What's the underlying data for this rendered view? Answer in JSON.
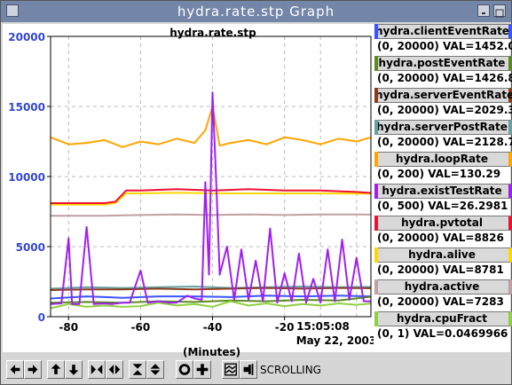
{
  "window": {
    "title": "hydra.rate.stp Graph"
  },
  "legend": [
    {
      "name": "hydra.clientEventRate",
      "range": "(0, 20000) VAL=1452.09",
      "color": "#3a54ff"
    },
    {
      "name": "hydra.postEventRate",
      "range": "(0, 20000) VAL=1426.8",
      "color": "#5b8a1e"
    },
    {
      "name": "hydra.serverEventRate",
      "range": "(0, 20000) VAL=2029.35",
      "color": "#8a3d1e"
    },
    {
      "name": "hydra.serverPostRate",
      "range": "(0, 20000) VAL=2128.74",
      "color": "#6aa0a0"
    },
    {
      "name": "hydra.loopRate",
      "range": "(0, 200) VAL=130.29",
      "color": "#ffa500"
    },
    {
      "name": "hydra.existTestRate",
      "range": "(0, 500) VAL=26.2981",
      "color": "#a020f0"
    },
    {
      "name": "hydra.pvtotal",
      "range": "(0, 20000) VAL=8826",
      "color": "#ee1030"
    },
    {
      "name": "hydra.alive",
      "range": "(0, 20000) VAL=8781",
      "color": "#ffd700"
    },
    {
      "name": "hydra.active",
      "range": "(0, 20000) VAL=7283",
      "color": "#c0a0a0"
    },
    {
      "name": "hydra.cpuFract",
      "range": "(0, 1) VAL=0.0469966",
      "color": "#90d040"
    }
  ],
  "toolbar": {
    "buttons": [
      "left-arrow",
      "right-arrow",
      "up-arrow",
      "down-arrow",
      "zoom-in-horizontal",
      "zoom-out-horizontal",
      "zoom-in-vertical",
      "zoom-out-vertical",
      "circle",
      "plus",
      "graph-style",
      "pin"
    ],
    "scrolling_label": "SCROLLING"
  },
  "chart_data": {
    "type": "line",
    "title": "hydra.rate.stp",
    "xlabel": "(Minutes)",
    "ylabel": "",
    "xlim": [
      -85,
      4
    ],
    "ylim": [
      0,
      20000
    ],
    "y_ticks": [
      "0",
      "5000",
      "10000",
      "15000",
      "20000"
    ],
    "x_ticks": [
      "-80",
      "-60",
      "-40",
      "-20"
    ],
    "time_label": "15:05:08",
    "date_label": "May 22, 2003",
    "grid": true,
    "series": [
      {
        "name": "hydra.clientEventRate",
        "x": [
          -85,
          -75,
          -65,
          -55,
          -45,
          -35,
          -25,
          -15,
          -5,
          4
        ],
        "values": [
          1300,
          1450,
          1350,
          1450,
          1450,
          1400,
          1500,
          1450,
          1500,
          1452
        ]
      },
      {
        "name": "hydra.postEventRate",
        "x": [
          -85,
          -75,
          -65,
          -55,
          -45,
          -35,
          -25,
          -15,
          -5,
          4
        ],
        "values": [
          1000,
          1050,
          1000,
          1100,
          1050,
          1150,
          1100,
          1200,
          1150,
          1427
        ]
      },
      {
        "name": "hydra.serverEventRate",
        "x": [
          -85,
          -75,
          -65,
          -55,
          -45,
          -35,
          -25,
          -15,
          -5,
          4
        ],
        "values": [
          1900,
          1950,
          1950,
          2000,
          1950,
          2000,
          2050,
          2000,
          2050,
          2029
        ]
      },
      {
        "name": "hydra.serverPostRate",
        "x": [
          -85,
          -75,
          -65,
          -55,
          -45,
          -35,
          -25,
          -15,
          -5,
          4
        ],
        "values": [
          2000,
          2100,
          2050,
          2100,
          2150,
          2050,
          2100,
          2150,
          2100,
          2129
        ]
      },
      {
        "name": "hydra.loopRate",
        "x": [
          -85,
          -80,
          -75,
          -70,
          -65,
          -60,
          -55,
          -50,
          -45,
          -42,
          -40,
          -38,
          -35,
          -30,
          -25,
          -20,
          -15,
          -10,
          -5,
          0,
          4
        ],
        "values": [
          12800,
          12300,
          12400,
          12600,
          12100,
          12500,
          12300,
          12700,
          12400,
          13300,
          15000,
          12200,
          12400,
          12600,
          12300,
          12800,
          12600,
          12300,
          12700,
          12500,
          12800
        ]
      },
      {
        "name": "hydra.existTestRate",
        "x": [
          -85,
          -82,
          -80,
          -79,
          -77,
          -75,
          -73,
          -70,
          -68,
          -65,
          -63,
          -60,
          -58,
          -55,
          -52,
          -50,
          -47,
          -45,
          -43,
          -42,
          -41,
          -40,
          -39,
          -38,
          -36,
          -34,
          -32,
          -30,
          -28,
          -26,
          -24,
          -22,
          -20,
          -18,
          -16,
          -14,
          -12,
          -10,
          -8,
          -6,
          -4,
          -2,
          0,
          2,
          4
        ],
        "values": [
          900,
          950,
          5600,
          900,
          900,
          6400,
          900,
          950,
          900,
          1000,
          1000,
          3300,
          1000,
          1100,
          1000,
          1000,
          1500,
          1300,
          1200,
          9600,
          3000,
          16000,
          9700,
          3000,
          5000,
          1200,
          4800,
          1200,
          4000,
          1100,
          6300,
          1000,
          3100,
          1100,
          4500,
          1000,
          2700,
          1000,
          4800,
          1100,
          5500,
          1200,
          4200,
          1100,
          1100
        ]
      },
      {
        "name": "hydra.pvtotal",
        "x": [
          -85,
          -70,
          -67,
          -64,
          -60,
          -50,
          -40,
          -30,
          -20,
          -10,
          0,
          4
        ],
        "values": [
          8100,
          8100,
          8200,
          9000,
          9000,
          9100,
          9000,
          9100,
          9000,
          9000,
          8900,
          8826
        ]
      },
      {
        "name": "hydra.alive",
        "x": [
          -85,
          -70,
          -67,
          -64,
          -60,
          -50,
          -40,
          -30,
          -20,
          -10,
          0,
          4
        ],
        "values": [
          8000,
          8000,
          8100,
          8800,
          8800,
          8850,
          8800,
          8800,
          8800,
          8800,
          8780,
          8781
        ]
      },
      {
        "name": "hydra.active",
        "x": [
          -85,
          -70,
          -60,
          -50,
          -40,
          -30,
          -20,
          -10,
          0,
          4
        ],
        "values": [
          7200,
          7200,
          7250,
          7300,
          7250,
          7300,
          7250,
          7300,
          7300,
          7283
        ]
      },
      {
        "name": "hydra.cpuFract",
        "x": [
          -85,
          -80,
          -75,
          -70,
          -65,
          -60,
          -55,
          -50,
          -45,
          -40,
          -35,
          -30,
          -25,
          -20,
          -15,
          -10,
          -5,
          0,
          4
        ],
        "values": [
          600,
          900,
          700,
          800,
          700,
          750,
          1000,
          800,
          900,
          700,
          1100,
          800,
          950,
          750,
          900,
          800,
          950,
          850,
          940
        ]
      }
    ]
  }
}
